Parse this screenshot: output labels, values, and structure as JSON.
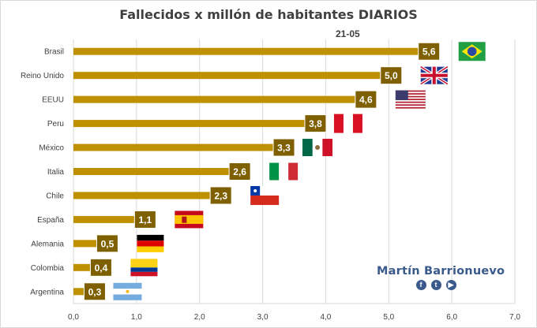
{
  "title": "Fallecidos x millón de habitantes DIARIOS",
  "subtitle": "21-05",
  "brand": {
    "name": "Martín Barrionuevo",
    "icons": [
      "facebook-icon",
      "twitter-icon",
      "youtube-icon"
    ]
  },
  "colors": {
    "bar": "#bf9000",
    "label_box": "#7f6000",
    "grid": "#d9d9d9",
    "text": "#404040",
    "brand": "#3b5a8c"
  },
  "chart_data": {
    "type": "bar",
    "orientation": "horizontal",
    "title": "Fallecidos x millón de habitantes DIARIOS",
    "subtitle": "21-05",
    "categories": [
      "Brasil",
      "Reino Unido",
      "EEUU",
      "Peru",
      "México",
      "Italia",
      "Chile",
      "España",
      "Alemania",
      "Colombia",
      "Argentina"
    ],
    "values": [
      5.6,
      5.0,
      4.6,
      3.8,
      3.3,
      2.6,
      2.3,
      1.1,
      0.5,
      0.4,
      0.3
    ],
    "value_labels": [
      "5,6",
      "5,0",
      "4,6",
      "3,8",
      "3,3",
      "2,6",
      "2,3",
      "1,1",
      "0,5",
      "0,4",
      "0,3"
    ],
    "flags": [
      "brazil",
      "united-kingdom",
      "united-states",
      "peru",
      "mexico",
      "italy",
      "chile",
      "spain",
      "germany",
      "colombia",
      "argentina"
    ],
    "xlim": [
      0,
      7
    ],
    "xticks": [
      0,
      1,
      2,
      3,
      4,
      5,
      6,
      7
    ],
    "xtick_labels": [
      "0,0",
      "1,0",
      "2,0",
      "3,0",
      "4,0",
      "5,0",
      "6,0",
      "7,0"
    ],
    "grid": true,
    "legend": "none"
  }
}
